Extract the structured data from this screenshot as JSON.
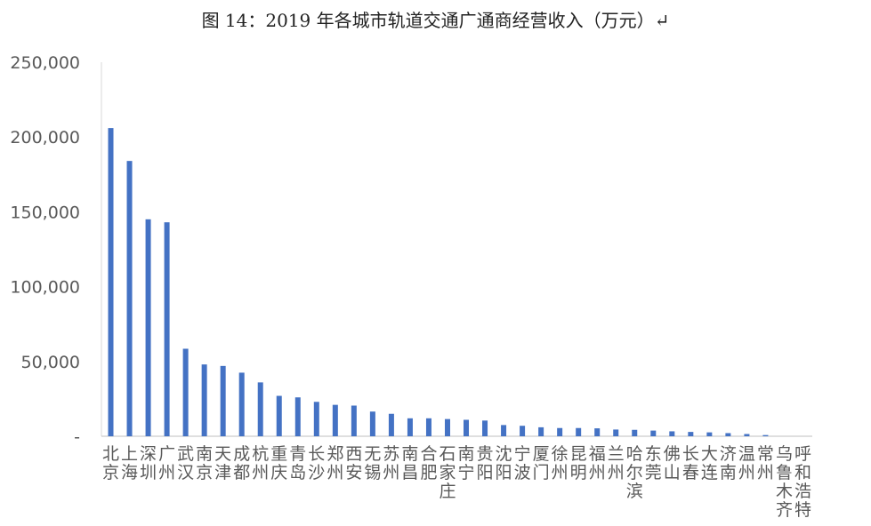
{
  "title": "图 14：2019 年各城市轨道交通广通商经营收入（万元）↵",
  "chart_data": {
    "type": "bar",
    "title": "图 14：2019 年各城市轨道交通广通商经营收入（万元）↵",
    "xlabel": "",
    "ylabel": "",
    "ylim": [
      0,
      250000
    ],
    "yticks": [
      0,
      50000,
      100000,
      150000,
      200000,
      250000
    ],
    "ytick_labels": [
      "-",
      "50,000",
      "100,000",
      "150,000",
      "200,000",
      "250,000"
    ],
    "grid": false,
    "bar_color": "#4472C4",
    "categories": [
      "北京",
      "上海",
      "深圳",
      "广州",
      "武汉",
      "南京",
      "天津",
      "成都",
      "杭州",
      "重庆",
      "青岛",
      "长沙",
      "郑州",
      "西安",
      "无锡",
      "苏州",
      "南昌",
      "合肥",
      "石家庄",
      "南宁",
      "贵阳",
      "沈阳",
      "宁波",
      "厦门",
      "徐州",
      "昆明",
      "福州",
      "兰州",
      "哈尔滨",
      "东莞",
      "佛山",
      "长春",
      "大连",
      "济南",
      "温州",
      "常州",
      "乌鲁木齐",
      "呼和浩特"
    ],
    "values": [
      206000,
      184000,
      145000,
      143000,
      58500,
      48000,
      47000,
      42500,
      36000,
      27000,
      26000,
      23000,
      21000,
      20500,
      16500,
      15000,
      12000,
      12000,
      11500,
      11000,
      10500,
      7500,
      7000,
      6000,
      5500,
      5500,
      5300,
      4500,
      4300,
      3800,
      3300,
      2900,
      2600,
      2100,
      1500,
      800,
      0,
      0
    ]
  }
}
